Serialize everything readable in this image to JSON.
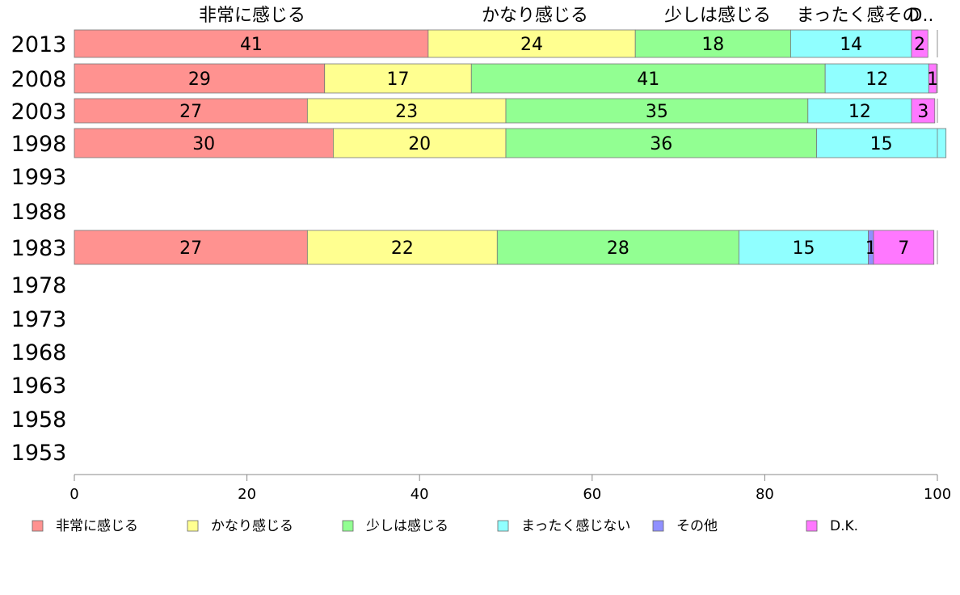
{
  "chart_data": {
    "type": "bar",
    "orientation": "horizontal",
    "stacked": true,
    "title": "",
    "xlabel": "",
    "ylabel": "",
    "xlim": [
      0,
      100
    ],
    "x_ticks": [
      0,
      20,
      40,
      60,
      80,
      100
    ],
    "categories": [
      "2013",
      "2008",
      "2003",
      "1998",
      "1993",
      "1988",
      "1983",
      "1978",
      "1973",
      "1968",
      "1963",
      "1958",
      "1953"
    ],
    "top_labels": [
      "非常に感じる",
      "かなり感じる",
      "少しは感じる",
      "まったく感その",
      "D.."
    ],
    "legend_placement": "bottom",
    "grid": false,
    "series": [
      {
        "name": "非常に感じる",
        "color": "#ff9290",
        "values": [
          41,
          29,
          27,
          30,
          null,
          null,
          27,
          null,
          null,
          null,
          null,
          null,
          null
        ],
        "labels": [
          "41",
          "29",
          "27",
          "30",
          "",
          "",
          "27",
          "",
          "",
          "",
          "",
          "",
          ""
        ]
      },
      {
        "name": "かなり感じる",
        "color": "#ffff90",
        "values": [
          24,
          17,
          23,
          20,
          null,
          null,
          22,
          null,
          null,
          null,
          null,
          null,
          null
        ],
        "labels": [
          "24",
          "17",
          "23",
          "20",
          "",
          "",
          "22",
          "",
          "",
          "",
          "",
          "",
          ""
        ]
      },
      {
        "name": "少しは感じる",
        "color": "#92ff92",
        "values": [
          18,
          41,
          35,
          36,
          null,
          null,
          28,
          null,
          null,
          null,
          null,
          null,
          null
        ],
        "labels": [
          "18",
          "41",
          "35",
          "36",
          "",
          "",
          "28",
          "",
          "",
          "",
          "",
          "",
          ""
        ]
      },
      {
        "name": "まったく感じない",
        "color": "#90ffff",
        "values": [
          14,
          12,
          12,
          15,
          null,
          null,
          15,
          null,
          null,
          null,
          null,
          null,
          null
        ],
        "labels": [
          "14",
          "12",
          "12",
          "15",
          "",
          "",
          "15",
          "",
          "",
          "",
          "",
          "",
          ""
        ]
      },
      {
        "name": "その他",
        "color": "#9090ff",
        "values": [
          0,
          0,
          0,
          0,
          null,
          null,
          0.6,
          null,
          null,
          null,
          null,
          null,
          null
        ],
        "labels": [
          "",
          "",
          "",
          "",
          "",
          "",
          "1",
          "",
          "",
          "",
          "",
          "",
          ""
        ]
      },
      {
        "name": "D.K.",
        "color": "#ff78ff",
        "values": [
          1.9,
          0.9,
          2.7,
          0,
          null,
          null,
          7,
          null,
          null,
          null,
          null,
          null,
          null
        ],
        "labels": [
          "2",
          "1",
          "3",
          "",
          "",
          "",
          "7",
          "",
          "",
          "",
          "",
          "",
          ""
        ]
      }
    ]
  }
}
